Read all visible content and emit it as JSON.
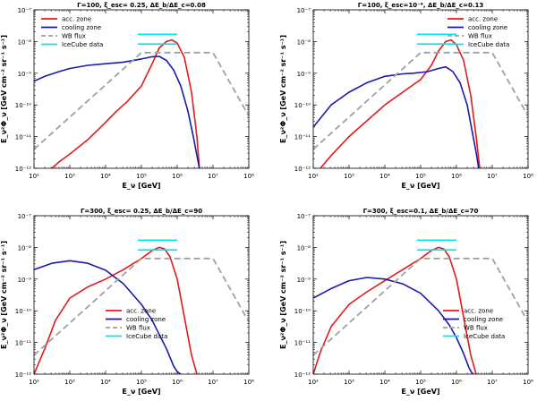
{
  "chart_data": [
    {
      "type": "line",
      "title": "Γ=100, ξ_esc= 0.25, ΔE_b/ΔE_c=0.08",
      "xlabel": "E_ν [GeV]",
      "ylabel": "E_ν²Φ_ν [GeV cm⁻² sr⁻¹ s⁻¹]",
      "xscale": "log",
      "yscale": "log",
      "xlim": [
        100,
        100000000
      ],
      "ylim": [
        1e-12,
        1e-07
      ],
      "x_ticks": [
        "10²",
        "10³",
        "10⁴",
        "10⁵",
        "10⁶",
        "10⁷",
        "10⁸"
      ],
      "y_ticks": [
        "10⁻¹²",
        "10⁻¹¹",
        "10⁻¹⁰",
        "10⁻⁹",
        "10⁻⁸",
        "10⁻⁷"
      ],
      "legend_position": "top-left",
      "series": [
        {
          "name": "acc. zone",
          "color": "#e31a1c",
          "dash": "solid",
          "x": [
            2.5,
            2.7,
            3.0,
            3.5,
            4.0,
            4.3,
            4.6,
            5.0,
            5.3,
            5.5,
            5.7,
            5.85,
            6.0,
            6.2,
            6.4,
            6.55,
            6.62
          ],
          "y": [
            -12,
            -11.8,
            -11.55,
            -11.1,
            -10.55,
            -10.2,
            -9.9,
            -9.4,
            -8.7,
            -8.2,
            -8.0,
            -7.95,
            -8.05,
            -8.5,
            -9.6,
            -11.0,
            -12
          ]
        },
        {
          "name": "cooling zone",
          "color": "#1a1aaa",
          "dash": "solid",
          "x": [
            2.0,
            2.3,
            2.7,
            3.0,
            3.5,
            4.0,
            4.5,
            5.0,
            5.3,
            5.5,
            5.7,
            5.9,
            6.1,
            6.3,
            6.45,
            6.55,
            6.62
          ],
          "y": [
            -9.25,
            -9.1,
            -8.95,
            -8.85,
            -8.75,
            -8.7,
            -8.65,
            -8.55,
            -8.48,
            -8.47,
            -8.6,
            -8.9,
            -9.4,
            -10.2,
            -11.0,
            -11.6,
            -12
          ]
        },
        {
          "name": "WB flux",
          "color": "#a0a0a0",
          "dash": "dashed",
          "x": [
            2.0,
            5.0,
            7.0,
            8.0
          ],
          "y": [
            -11.4,
            -8.35,
            -8.35,
            -10.35
          ]
        },
        {
          "name": "IceCube data",
          "color": "#00e5ee",
          "dash": "solid",
          "segments": [
            [
              4.9,
              6.0,
              -7.77
            ],
            [
              4.9,
              6.0,
              -8.08
            ]
          ]
        }
      ]
    },
    {
      "type": "line",
      "title": "Γ=100, ξ_esc=10⁻⁴, ΔE_b/ΔE_c=0.13",
      "xlabel": "E_ν [GeV]",
      "ylabel": "E_ν²Φ_ν [GeV cm⁻² sr⁻¹ s⁻¹]",
      "xscale": "log",
      "yscale": "log",
      "xlim": [
        100,
        100000000
      ],
      "ylim": [
        1e-12,
        1e-07
      ],
      "x_ticks": [
        "10²",
        "10³",
        "10⁴",
        "10⁵",
        "10⁶",
        "10⁷",
        "10⁸"
      ],
      "y_ticks": [
        "10⁻¹²",
        "10⁻¹¹",
        "10⁻¹⁰",
        "10⁻⁹",
        "10⁻⁸",
        "10⁻⁷"
      ],
      "legend_position": "top-right",
      "series": [
        {
          "name": "acc. zone",
          "color": "#e31a1c",
          "dash": "solid",
          "x": [
            2.2,
            2.5,
            3.0,
            3.5,
            4.0,
            4.5,
            5.0,
            5.3,
            5.5,
            5.7,
            5.85,
            6.0,
            6.2,
            6.4,
            6.55,
            6.65
          ],
          "y": [
            -12,
            -11.6,
            -11.0,
            -10.5,
            -10.0,
            -9.6,
            -9.2,
            -8.75,
            -8.3,
            -8.0,
            -7.95,
            -8.1,
            -8.6,
            -9.7,
            -11.0,
            -12
          ]
        },
        {
          "name": "cooling zone",
          "color": "#1a1aaa",
          "dash": "solid",
          "x": [
            2.0,
            2.5,
            3.0,
            3.5,
            4.0,
            4.5,
            4.8,
            5.2,
            5.5,
            5.7,
            5.9,
            6.1,
            6.3,
            6.45,
            6.55,
            6.62
          ],
          "y": [
            -10.7,
            -10.0,
            -9.6,
            -9.3,
            -9.1,
            -9.02,
            -9.0,
            -8.95,
            -8.85,
            -8.8,
            -8.95,
            -9.3,
            -10.0,
            -10.9,
            -11.5,
            -12
          ]
        },
        {
          "name": "WB flux",
          "color": "#a0a0a0",
          "dash": "dashed",
          "x": [
            2.0,
            5.0,
            7.0,
            8.0
          ],
          "y": [
            -11.4,
            -8.35,
            -8.35,
            -10.35
          ]
        },
        {
          "name": "IceCube data",
          "color": "#00e5ee",
          "dash": "solid",
          "segments": [
            [
              4.9,
              6.0,
              -7.77
            ],
            [
              4.9,
              6.0,
              -8.08
            ]
          ]
        }
      ]
    },
    {
      "type": "line",
      "title": "Γ=300, ξ_esc= 0.25, ΔE_b/ΔE_c=90",
      "xlabel": "E_ν [GeV]",
      "ylabel": "E_ν²Φ_ν [GeV cm⁻² sr⁻¹ s⁻¹]",
      "xscale": "log",
      "yscale": "log",
      "xlim": [
        100,
        100000000
      ],
      "ylim": [
        1e-12,
        1e-07
      ],
      "x_ticks": [
        "10²",
        "10³",
        "10⁴",
        "10⁵",
        "10⁶",
        "10⁷",
        "10⁸"
      ],
      "y_ticks": [
        "10⁻¹²",
        "10⁻¹¹",
        "10⁻¹⁰",
        "10⁻⁹",
        "10⁻⁸",
        "10⁻⁷"
      ],
      "legend_position": "bottom-center",
      "series": [
        {
          "name": "acc. zone",
          "color": "#e31a1c",
          "dash": "solid",
          "x": [
            2.0,
            2.3,
            2.6,
            3.0,
            3.5,
            4.0,
            4.5,
            5.0,
            5.3,
            5.5,
            5.65,
            5.8,
            6.0,
            6.2,
            6.4,
            6.55
          ],
          "y": [
            -12,
            -11.2,
            -10.3,
            -9.6,
            -9.25,
            -9.0,
            -8.7,
            -8.35,
            -8.1,
            -8.0,
            -8.05,
            -8.3,
            -9.0,
            -10.2,
            -11.4,
            -12
          ]
        },
        {
          "name": "cooling zone",
          "color": "#1a1aaa",
          "dash": "solid",
          "x": [
            2.0,
            2.5,
            3.0,
            3.5,
            4.0,
            4.5,
            5.0,
            5.3,
            5.5,
            5.7,
            5.9,
            6.0,
            6.1
          ],
          "y": [
            -8.7,
            -8.5,
            -8.42,
            -8.5,
            -8.72,
            -9.15,
            -9.8,
            -10.3,
            -10.75,
            -11.2,
            -11.75,
            -11.92,
            -12
          ]
        },
        {
          "name": "WB flux",
          "color": "#a0a0a0",
          "dash": "dashed",
          "x": [
            2.0,
            5.0,
            7.0,
            8.0
          ],
          "y": [
            -11.4,
            -8.35,
            -8.35,
            -10.35
          ]
        },
        {
          "name": "IceCube data",
          "color": "#00e5ee",
          "dash": "solid",
          "segments": [
            [
              4.9,
              6.0,
              -7.77
            ],
            [
              4.9,
              6.0,
              -8.08
            ]
          ]
        }
      ]
    },
    {
      "type": "line",
      "title": "Γ=300, ξ_esc=0.1, ΔE_b/ΔE_c=70",
      "xlabel": "E_ν [GeV]",
      "ylabel": "E_ν²Φ_ν [GeV cm⁻² sr⁻¹ s⁻¹]",
      "xscale": "log",
      "yscale": "log",
      "xlim": [
        100,
        100000000
      ],
      "ylim": [
        1e-12,
        1e-07
      ],
      "x_ticks": [
        "10²",
        "10³",
        "10⁴",
        "10⁵",
        "10⁶",
        "10⁷",
        "10⁸"
      ],
      "y_ticks": [
        "10⁻¹²",
        "10⁻¹¹",
        "10⁻¹⁰",
        "10⁻⁹",
        "10⁻⁸",
        "10⁻⁷"
      ],
      "legend_position": "bottom-right",
      "series": [
        {
          "name": "acc. zone",
          "color": "#e31a1c",
          "dash": "solid",
          "x": [
            2.0,
            2.2,
            2.5,
            3.0,
            3.5,
            4.0,
            4.5,
            5.0,
            5.3,
            5.5,
            5.65,
            5.8,
            6.0,
            6.2,
            6.4,
            6.55
          ],
          "y": [
            -12,
            -11.3,
            -10.5,
            -9.8,
            -9.4,
            -9.05,
            -8.7,
            -8.35,
            -8.1,
            -8.0,
            -8.05,
            -8.3,
            -9.0,
            -10.2,
            -11.4,
            -12
          ]
        },
        {
          "name": "cooling zone",
          "color": "#1a1aaa",
          "dash": "solid",
          "x": [
            2.0,
            2.5,
            3.0,
            3.5,
            4.0,
            4.5,
            5.0,
            5.5,
            5.8,
            6.0,
            6.2,
            6.35,
            6.45
          ],
          "y": [
            -9.6,
            -9.3,
            -9.05,
            -8.95,
            -9.0,
            -9.15,
            -9.45,
            -10.0,
            -10.45,
            -10.85,
            -11.35,
            -11.8,
            -12
          ]
        },
        {
          "name": "WB flux",
          "color": "#a0a0a0",
          "dash": "dashed",
          "x": [
            2.0,
            5.0,
            7.0,
            8.0
          ],
          "y": [
            -11.4,
            -8.35,
            -8.35,
            -10.35
          ]
        },
        {
          "name": "IceCube data",
          "color": "#00e5ee",
          "dash": "solid",
          "segments": [
            [
              4.9,
              6.0,
              -7.77
            ],
            [
              4.9,
              6.0,
              -8.08
            ]
          ]
        }
      ]
    }
  ]
}
